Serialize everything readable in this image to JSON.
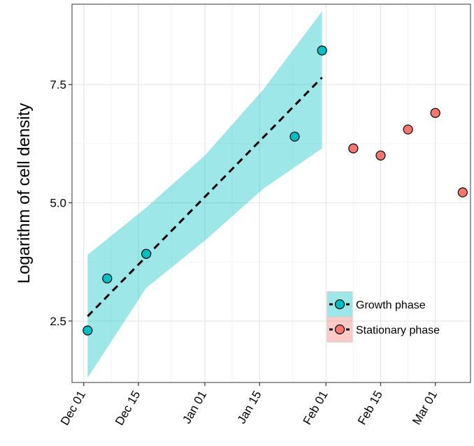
{
  "chart_data": {
    "type": "scatter",
    "title": "",
    "xlabel": "",
    "ylabel": "Logarithm of cell density",
    "x_tick_labels": [
      "Dec 01",
      "Dec 15",
      "Jan 01",
      "Jan 15",
      "Feb 01",
      "Feb 15",
      "Mar 01"
    ],
    "x_tick_dates": [
      "2013-12-01",
      "2013-12-15",
      "2014-01-01",
      "2014-01-15",
      "2014-02-01",
      "2014-02-15",
      "2014-03-01"
    ],
    "xlim": [
      "2013-11-28",
      "2014-03-10"
    ],
    "y_ticks": [
      2.5,
      5.0,
      7.5
    ],
    "y_tick_labels": [
      "2.5",
      "5.0",
      "7.5"
    ],
    "ylim": [
      1.2,
      9.2
    ],
    "grid": true,
    "legend_position": "bottom-right",
    "series": [
      {
        "name": "Growth phase",
        "color": "#00BFC4",
        "marker": "circle",
        "points": [
          {
            "x": "2013-12-02",
            "y": 2.3
          },
          {
            "x": "2013-12-07",
            "y": 3.4
          },
          {
            "x": "2013-12-17",
            "y": 3.92
          },
          {
            "x": "2014-01-24",
            "y": 6.4
          },
          {
            "x": "2014-01-31",
            "y": 8.22
          }
        ],
        "trend": {
          "style": "dashed",
          "points": [
            {
              "x": "2013-12-02",
              "y": 2.6
            },
            {
              "x": "2014-01-31",
              "y": 7.65
            }
          ]
        },
        "band": {
          "x": [
            "2013-12-02",
            "2013-12-17",
            "2014-01-01",
            "2014-01-16",
            "2014-01-31"
          ],
          "lower": [
            1.3,
            3.2,
            4.2,
            5.3,
            6.15
          ],
          "upper": [
            3.9,
            4.9,
            6.0,
            7.4,
            9.05
          ]
        }
      },
      {
        "name": "Stationary phase",
        "color": "#F8766D",
        "marker": "circle",
        "points": [
          {
            "x": "2014-02-08",
            "y": 6.15
          },
          {
            "x": "2014-02-15",
            "y": 6.0
          },
          {
            "x": "2014-02-22",
            "y": 6.55
          },
          {
            "x": "2014-03-01",
            "y": 6.9
          },
          {
            "x": "2014-03-08",
            "y": 5.22
          }
        ]
      }
    ]
  }
}
